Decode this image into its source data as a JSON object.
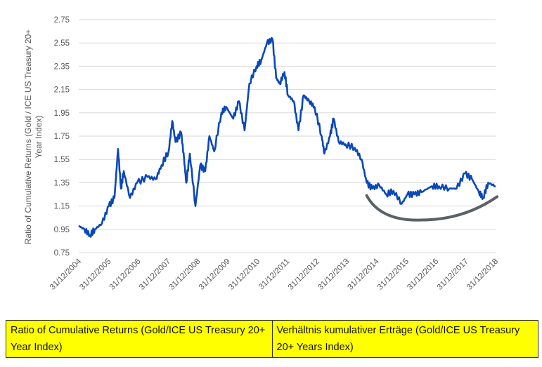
{
  "chart_data": {
    "type": "line",
    "title": "",
    "ylabel": "Ratio of Cumulative Returns (Gold / ICE US Treasury 20+ Year Index)",
    "xlabel": "",
    "ylim": [
      0.75,
      2.75
    ],
    "yticks": [
      "0.75",
      "0.95",
      "1.15",
      "1.35",
      "1.55",
      "1.75",
      "1.95",
      "2.15",
      "2.35",
      "2.55",
      "2.75"
    ],
    "xlim": [
      2005.0,
      2019.0
    ],
    "xticks": [
      "31/12/2004",
      "31/12/2005",
      "31/12/2006",
      "31/12/2007",
      "31/12/2008",
      "31/12/2009",
      "31/12/2010",
      "31/12/2011",
      "31/12/2012",
      "31/12/2013",
      "31/12/2014",
      "31/12/2015",
      "31/12/2016",
      "31/12/2017",
      "31/12/2018"
    ],
    "grid": true,
    "line_color": "#0a47b8",
    "annotation_color": "#5a6268",
    "series": [
      {
        "name": "Gold / ICE US Treasury 20+ Year Index",
        "x": [
          2005.0,
          2005.19,
          2005.38,
          2005.54,
          2005.78,
          2006.01,
          2006.2,
          2006.32,
          2006.42,
          2006.51,
          2006.72,
          2006.96,
          2007.31,
          2007.59,
          2007.78,
          2008.02,
          2008.14,
          2008.25,
          2008.44,
          2008.54,
          2008.61,
          2008.73,
          2008.92,
          2009.08,
          2009.25,
          2009.39,
          2009.55,
          2009.79,
          2009.95,
          2010.19,
          2010.38,
          2010.57,
          2010.73,
          2010.97,
          2011.13,
          2011.32,
          2011.51,
          2011.63,
          2011.75,
          2011.91,
          2012.03,
          2012.22,
          2012.38,
          2012.55,
          2012.74,
          2012.92,
          2013.16,
          2013.25,
          2013.44,
          2013.56,
          2013.73,
          2013.96,
          2014.27,
          2014.5,
          2014.67,
          2014.86,
          2015.09,
          2015.33,
          2015.57,
          2015.85,
          2016.04,
          2016.27,
          2016.51,
          2016.86,
          2017.1,
          2017.45,
          2017.69,
          2017.97,
          2018.21,
          2018.44,
          2018.58,
          2018.75,
          2019.0
        ],
        "values": [
          0.98,
          0.95,
          0.9,
          0.95,
          1.0,
          1.15,
          1.22,
          1.64,
          1.3,
          1.45,
          1.22,
          1.35,
          1.4,
          1.38,
          1.5,
          1.62,
          1.88,
          1.7,
          1.78,
          1.55,
          1.35,
          1.6,
          1.15,
          1.5,
          1.45,
          1.75,
          1.62,
          1.95,
          2.0,
          1.9,
          2.05,
          1.8,
          2.2,
          2.35,
          2.4,
          2.55,
          2.58,
          2.25,
          2.2,
          2.3,
          2.1,
          2.05,
          1.8,
          2.1,
          2.05,
          2.0,
          1.75,
          1.6,
          1.75,
          1.9,
          1.7,
          1.68,
          1.65,
          1.55,
          1.35,
          1.3,
          1.33,
          1.25,
          1.28,
          1.17,
          1.25,
          1.25,
          1.27,
          1.32,
          1.32,
          1.3,
          1.3,
          1.43,
          1.38,
          1.27,
          1.22,
          1.35,
          1.32
        ]
      }
    ],
    "annotation_curve": {
      "start": [
        2014.67,
        1.24
      ],
      "trough": [
        2016.5,
        1.03
      ],
      "end": [
        2019.05,
        1.23
      ]
    }
  },
  "table": {
    "english": "Ratio of Cumulative Returns (Gold/ICE US Treasury 20+ Year Index)",
    "german": "Verhältnis kumulativer Erträge (Gold/ICE US Treasury 20+ Years Index)"
  }
}
